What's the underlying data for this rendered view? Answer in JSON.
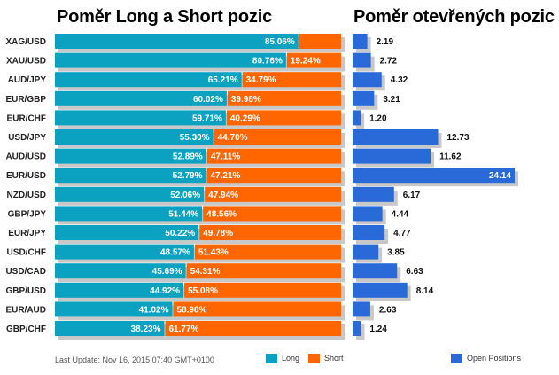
{
  "titles": {
    "left": "Poměr Long a Short pozic",
    "right": "Poměr otevřených pozic"
  },
  "footer": "Last Update: Nov 16, 2015 07:40 GMT+0100",
  "legend": {
    "long": "Long",
    "short": "Short",
    "open": "Open Positions"
  },
  "colors": {
    "long": "#0aa2c0",
    "short": "#ff6600",
    "open": "#2a6ad8",
    "shadow": "#c8c8c8"
  },
  "chart_data": [
    {
      "type": "bar",
      "orientation": "horizontal",
      "stacked": true,
      "title": "Poměr Long a Short pozic",
      "categories": [
        "XAG/USD",
        "XAU/USD",
        "AUD/JPY",
        "EUR/GBP",
        "EUR/CHF",
        "USD/JPY",
        "AUD/USD",
        "EUR/USD",
        "NZD/USD",
        "GBP/JPY",
        "EUR/JPY",
        "USD/CHF",
        "USD/CAD",
        "GBP/USD",
        "EUR/AUD",
        "GBP/CHF"
      ],
      "series": [
        {
          "name": "Long",
          "values": [
            85.06,
            80.76,
            65.21,
            60.02,
            59.71,
            55.3,
            52.89,
            52.79,
            52.06,
            51.44,
            50.22,
            48.57,
            45.69,
            44.92,
            41.02,
            38.23
          ],
          "labels": [
            "85.06%",
            "80.76%",
            "65.21%",
            "60.02%",
            "59.71%",
            "55.30%",
            "52.89%",
            "52.79%",
            "52.06%",
            "51.44%",
            "50.22%",
            "48.57%",
            "45.69%",
            "44.92%",
            "41.02%",
            "38.23%"
          ]
        },
        {
          "name": "Short",
          "values": [
            14.94,
            19.24,
            34.79,
            39.98,
            40.29,
            44.7,
            47.11,
            47.21,
            47.94,
            48.56,
            49.78,
            51.43,
            54.31,
            55.08,
            58.98,
            61.77
          ],
          "labels": [
            "",
            "19.24%",
            "34.79%",
            "39.98%",
            "40.29%",
            "44.70%",
            "47.11%",
            "47.21%",
            "47.94%",
            "48.56%",
            "49.78%",
            "51.43%",
            "54.31%",
            "55.08%",
            "58.98%",
            "61.77%"
          ]
        }
      ],
      "xlim": [
        0,
        100
      ],
      "legend": "bottom"
    },
    {
      "type": "bar",
      "orientation": "horizontal",
      "title": "Poměr otevřených pozic",
      "categories": [
        "XAG/USD",
        "XAU/USD",
        "AUD/JPY",
        "EUR/GBP",
        "EUR/CHF",
        "USD/JPY",
        "AUD/USD",
        "EUR/USD",
        "NZD/USD",
        "GBP/JPY",
        "EUR/JPY",
        "USD/CHF",
        "USD/CAD",
        "GBP/USD",
        "EUR/AUD",
        "GBP/CHF"
      ],
      "series": [
        {
          "name": "Open Positions",
          "values": [
            2.19,
            2.72,
            4.32,
            3.21,
            1.2,
            12.73,
            11.62,
            24.14,
            6.17,
            4.44,
            4.77,
            3.85,
            6.63,
            8.14,
            2.63,
            1.24
          ],
          "labels": [
            "2.19",
            "2.72",
            "4.32",
            "3.21",
            "1.20",
            "12.73",
            "11.62",
            "24.14",
            "6.17",
            "4.44",
            "4.77",
            "3.85",
            "6.63",
            "8.14",
            "2.63",
            "1.24"
          ]
        }
      ],
      "legend": "bottom"
    }
  ]
}
